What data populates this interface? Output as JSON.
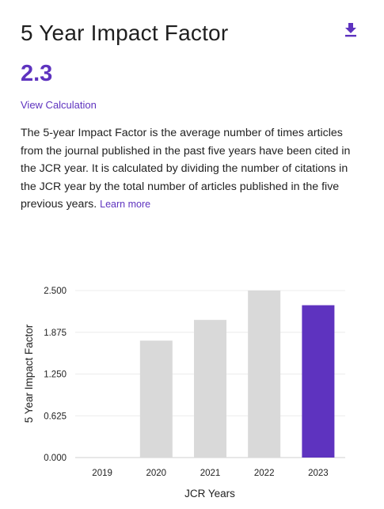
{
  "header": {
    "title": "5 Year Impact Factor",
    "download_icon": "download-icon"
  },
  "metric": {
    "value": "2.3"
  },
  "links": {
    "view_calculation": "View Calculation",
    "learn_more": "Learn more"
  },
  "description": "The 5-year Impact Factor is the average number of times articles from the journal published in the past five years have been cited in the JCR year. It is calculated by dividing the number of citations in the JCR year by the total number of articles published in the five previous years.",
  "colors": {
    "accent": "#5e33bf",
    "bar_default": "#d9d9d9",
    "bar_highlight": "#5e33bf"
  },
  "chart_data": {
    "type": "bar",
    "categories": [
      "2019",
      "2020",
      "2021",
      "2022",
      "2023"
    ],
    "values": [
      null,
      1.75,
      2.06,
      2.5,
      2.28
    ],
    "highlight": "2023",
    "yticks": [
      "0.000",
      "0.625",
      "1.250",
      "1.875",
      "2.500"
    ],
    "ylim": [
      0,
      2.5
    ],
    "xlabel": "JCR Years",
    "ylabel": "5 Year Impact Factor",
    "grid": true
  }
}
